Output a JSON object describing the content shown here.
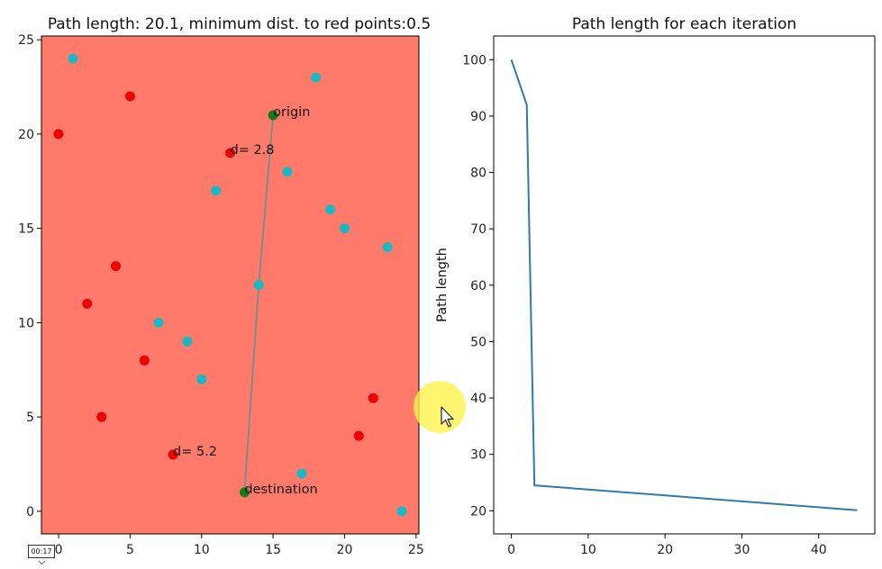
{
  "timestamp": "00:17",
  "colors": {
    "background_field": "#ff7a6b",
    "red_point": "#ee0000",
    "cyan_point": "#1ab8c0",
    "green_point": "#1a7a1a",
    "path_line": "#7f8c8c",
    "series_line": "#2b7bb0",
    "cursor_highlight": "#fff34a"
  },
  "chart_data": [
    {
      "type": "scatter",
      "title": "Path length: 20.1, minimum dist. to red points:0.5",
      "xlabel": "",
      "ylabel": "",
      "xlim": [
        -1.2,
        25.2
      ],
      "ylim": [
        -1.2,
        25.2
      ],
      "xticks": [
        0,
        5,
        10,
        15,
        20,
        25
      ],
      "yticks": [
        0,
        5,
        10,
        15,
        20,
        25
      ],
      "background": "#ff7a6b",
      "grid": false,
      "series": [
        {
          "color": "#ee0000",
          "points": [
            [
              0,
              20
            ],
            [
              5,
              22
            ],
            [
              12,
              19
            ],
            [
              4,
              13
            ],
            [
              2,
              11
            ],
            [
              6,
              8
            ],
            [
              3,
              5
            ],
            [
              8,
              3
            ],
            [
              22,
              6
            ],
            [
              21,
              4
            ]
          ]
        },
        {
          "color": "#1ab8c0",
          "points": [
            [
              1,
              24
            ],
            [
              18,
              23
            ],
            [
              16,
              18
            ],
            [
              11,
              17
            ],
            [
              19,
              16
            ],
            [
              20,
              15
            ],
            [
              23,
              14
            ],
            [
              14,
              12
            ],
            [
              7,
              10
            ],
            [
              9,
              9
            ],
            [
              10,
              7
            ],
            [
              17,
              2
            ],
            [
              24,
              0
            ]
          ]
        },
        {
          "color": "#1a7a1a",
          "points": [
            [
              15,
              21
            ],
            [
              13,
              1
            ]
          ]
        }
      ],
      "path": [
        [
          15,
          21
        ],
        [
          14,
          12
        ],
        [
          13,
          1
        ]
      ],
      "annotations": [
        {
          "text": "origin",
          "x": 15,
          "y": 21
        },
        {
          "text": "d= 2.8",
          "x": 12,
          "y": 19
        },
        {
          "text": "d= 5.2",
          "x": 8,
          "y": 3
        },
        {
          "text": "destination",
          "x": 13,
          "y": 1
        }
      ]
    },
    {
      "type": "line",
      "title": "Path length for each iteration",
      "xlabel": "",
      "ylabel": "Path length",
      "xlim": [
        -2.3,
        47.3
      ],
      "ylim": [
        15.9,
        104.2
      ],
      "xticks": [
        0,
        10,
        20,
        30,
        40
      ],
      "yticks": [
        20,
        30,
        40,
        50,
        60,
        70,
        80,
        90,
        100
      ],
      "grid": false,
      "series": [
        {
          "color": "#2b7bb0",
          "x": [
            0,
            2,
            3,
            45
          ],
          "y": [
            100,
            92,
            24.5,
            20.1
          ]
        }
      ]
    }
  ]
}
